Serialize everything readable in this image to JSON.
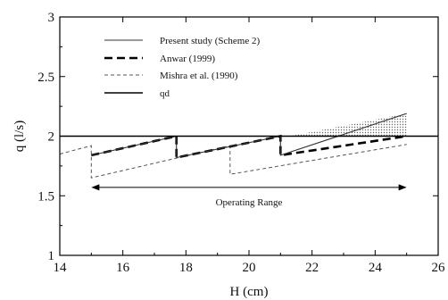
{
  "chart_data": {
    "type": "line",
    "title": "",
    "xlabel": "H (cm)",
    "ylabel": "q (l/s)",
    "xlim": [
      14,
      26
    ],
    "ylim": [
      1,
      3
    ],
    "x_ticks": [
      "14",
      "16",
      "18",
      "20",
      "22",
      "24",
      "26"
    ],
    "y_ticks": [
      "1",
      "1.5",
      "2",
      "2.5",
      "3"
    ],
    "legend_position": "top-left",
    "series": [
      {
        "name": "Present study (Scheme 2)",
        "style": "solid-thin",
        "x": [
          15.0,
          17.7,
          17.7,
          21.0,
          21.0,
          25.0
        ],
        "y": [
          1.84,
          2.0,
          1.82,
          2.0,
          1.84,
          2.19
        ]
      },
      {
        "name": "Anwar (1999)",
        "style": "dashed-thick",
        "x": [
          15.0,
          17.7,
          17.7,
          21.0,
          21.0,
          25.0
        ],
        "y": [
          1.84,
          2.0,
          1.82,
          2.0,
          1.84,
          2.0
        ]
      },
      {
        "name": "Mishra et al. (1990)",
        "style": "dashed-thin",
        "x": [
          14.0,
          15.0,
          15.0,
          19.4,
          19.4,
          25.0
        ],
        "y": [
          1.85,
          1.92,
          1.65,
          1.92,
          1.68,
          1.93
        ]
      },
      {
        "name": "qd",
        "style": "solid",
        "x": [
          14,
          26
        ],
        "y": [
          2.0,
          2.0
        ]
      }
    ],
    "shaded_region": {
      "x_start": 21.3,
      "x_end": 25.0
    },
    "annotation": {
      "text": "Operating Range",
      "x_start": 15.0,
      "x_end": 25.0,
      "y": 1.57
    }
  }
}
